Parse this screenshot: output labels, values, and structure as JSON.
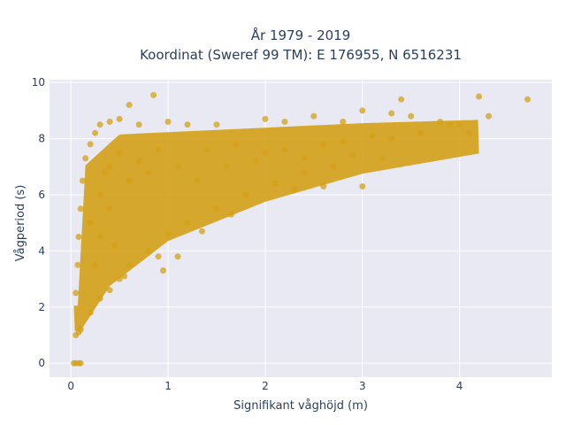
{
  "chart_data": {
    "type": "scatter",
    "title_line1": "År 1979 - 2019",
    "title_line2": "Koordinat (Sweref 99 TM): E 176955, N 6516231",
    "xlabel": "Signifikant våghöjd (m)",
    "ylabel": "Vågperiod (s)",
    "xlim": [
      -0.22,
      4.95
    ],
    "ylim": [
      -0.5,
      10.1
    ],
    "x_ticks": [
      0,
      1,
      2,
      3,
      4
    ],
    "y_ticks": [
      0,
      2,
      4,
      6,
      8,
      10
    ],
    "x_tick_labels": [
      "0",
      "1",
      "2",
      "3",
      "4"
    ],
    "y_tick_labels": [
      "0",
      "2",
      "4",
      "6",
      "8",
      "10"
    ],
    "grid": true,
    "marker_color": "#D4A017",
    "plot_background": "#E8E9F2",
    "series": [
      {
        "points": [
          [
            0.03,
            0.0
          ],
          [
            0.05,
            0.0
          ],
          [
            0.08,
            0.0
          ],
          [
            0.1,
            0.0
          ],
          [
            0.05,
            1.0
          ],
          [
            0.08,
            1.1
          ],
          [
            0.1,
            1.2
          ],
          [
            0.05,
            2.5
          ],
          [
            0.07,
            3.5
          ],
          [
            0.08,
            4.5
          ],
          [
            0.1,
            5.5
          ],
          [
            0.12,
            6.5
          ],
          [
            0.15,
            7.3
          ],
          [
            0.2,
            7.8
          ],
          [
            0.25,
            8.2
          ],
          [
            0.3,
            8.5
          ],
          [
            0.4,
            8.6
          ],
          [
            0.5,
            8.7
          ],
          [
            0.6,
            9.2
          ],
          [
            0.85,
            9.55
          ],
          [
            0.7,
            8.5
          ],
          [
            1.0,
            8.6
          ],
          [
            1.2,
            8.5
          ],
          [
            1.5,
            8.5
          ],
          [
            2.0,
            8.7
          ],
          [
            2.2,
            8.6
          ],
          [
            2.5,
            8.8
          ],
          [
            2.8,
            8.6
          ],
          [
            3.0,
            9.0
          ],
          [
            3.3,
            8.9
          ],
          [
            3.4,
            9.4
          ],
          [
            3.5,
            8.8
          ],
          [
            3.8,
            8.6
          ],
          [
            4.0,
            8.5
          ],
          [
            4.2,
            9.5
          ],
          [
            4.3,
            8.8
          ],
          [
            4.7,
            9.4
          ],
          [
            4.1,
            8.2
          ],
          [
            3.2,
            7.3
          ],
          [
            3.0,
            6.3
          ],
          [
            2.9,
            7.4
          ],
          [
            2.7,
            7.0
          ],
          [
            2.4,
            6.8
          ],
          [
            2.1,
            6.4
          ],
          [
            1.8,
            6.0
          ],
          [
            1.5,
            5.5
          ],
          [
            1.2,
            5.0
          ],
          [
            1.0,
            4.6
          ],
          [
            0.8,
            4.0
          ],
          [
            0.6,
            3.5
          ],
          [
            0.5,
            3.0
          ],
          [
            0.4,
            2.6
          ],
          [
            0.3,
            2.3
          ],
          [
            0.2,
            1.8
          ],
          [
            0.9,
            3.8
          ],
          [
            1.1,
            3.8
          ],
          [
            0.95,
            3.3
          ],
          [
            1.65,
            5.3
          ],
          [
            2.3,
            6.2
          ],
          [
            2.6,
            6.3
          ],
          [
            1.35,
            4.7
          ],
          [
            0.55,
            3.1
          ],
          [
            0.3,
            6.0
          ],
          [
            0.4,
            7.0
          ],
          [
            0.5,
            7.5
          ],
          [
            0.6,
            6.5
          ],
          [
            0.7,
            7.2
          ],
          [
            0.8,
            6.8
          ],
          [
            0.9,
            7.6
          ],
          [
            1.1,
            7.0
          ],
          [
            1.3,
            6.5
          ],
          [
            1.4,
            7.6
          ],
          [
            1.6,
            7.0
          ],
          [
            1.7,
            7.8
          ],
          [
            1.9,
            7.2
          ],
          [
            2.0,
            7.5
          ],
          [
            2.2,
            7.6
          ],
          [
            2.4,
            7.3
          ],
          [
            2.6,
            7.8
          ],
          [
            2.8,
            7.9
          ],
          [
            3.1,
            8.1
          ],
          [
            3.3,
            8.0
          ],
          [
            3.6,
            8.2
          ],
          [
            3.9,
            8.5
          ],
          [
            0.2,
            5.0
          ],
          [
            0.3,
            4.5
          ],
          [
            0.4,
            5.5
          ],
          [
            0.25,
            3.5
          ],
          [
            0.35,
            6.8
          ],
          [
            0.45,
            4.2
          ]
        ]
      }
    ]
  }
}
